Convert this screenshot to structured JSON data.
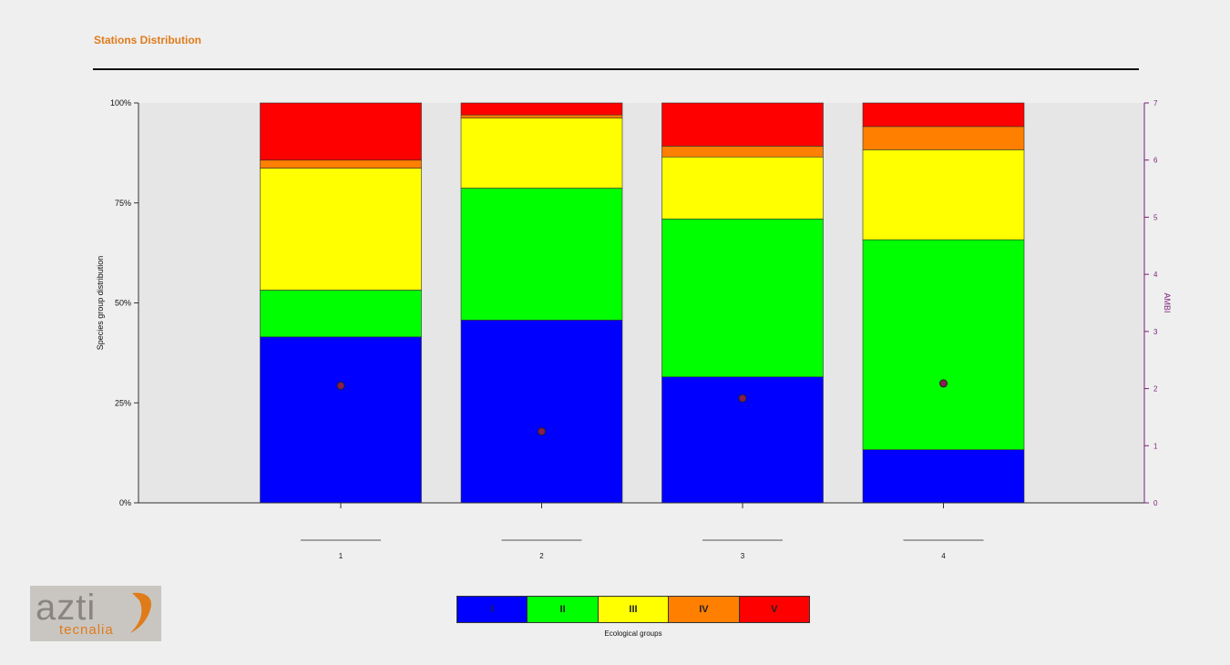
{
  "page": {
    "title": "Stations Distribution",
    "logo": {
      "brand": "azti",
      "sub": "tecnalia"
    }
  },
  "colors": {
    "title": "#e07b1a",
    "plot_bg": "#e6e6e6",
    "right_axis": "#7a1f7a",
    "marker_fill": "#8b1e4e",
    "groups": [
      "#0000ff",
      "#00ff00",
      "#ffff00",
      "#ff7f00",
      "#ff0000"
    ]
  },
  "chart_data": {
    "type": "bar",
    "stacked": "percent",
    "categories": [
      "1",
      "2",
      "3",
      "4"
    ],
    "ylabel": "Species group distribution",
    "y2label": "AMBI",
    "ylim": [
      0,
      100
    ],
    "y2lim": [
      0,
      7
    ],
    "yticks": [
      "0%",
      "25%",
      "50%",
      "75%",
      "100%"
    ],
    "y2ticks": [
      "0",
      "1",
      "2",
      "3",
      "4",
      "5",
      "6",
      "7"
    ],
    "series": [
      {
        "name": "I",
        "values": [
          41.5,
          45.7,
          31.5,
          13.3
        ]
      },
      {
        "name": "II",
        "values": [
          11.7,
          33.0,
          39.5,
          52.5
        ]
      },
      {
        "name": "III",
        "values": [
          30.5,
          17.5,
          15.5,
          22.5
        ]
      },
      {
        "name": "IV",
        "values": [
          2.0,
          0.8,
          2.7,
          5.8
        ]
      },
      {
        "name": "V",
        "values": [
          14.3,
          3.0,
          10.8,
          5.9
        ]
      }
    ],
    "ambi": [
      2.05,
      1.25,
      1.83,
      2.09
    ],
    "legend_title": "Ecological groups"
  }
}
